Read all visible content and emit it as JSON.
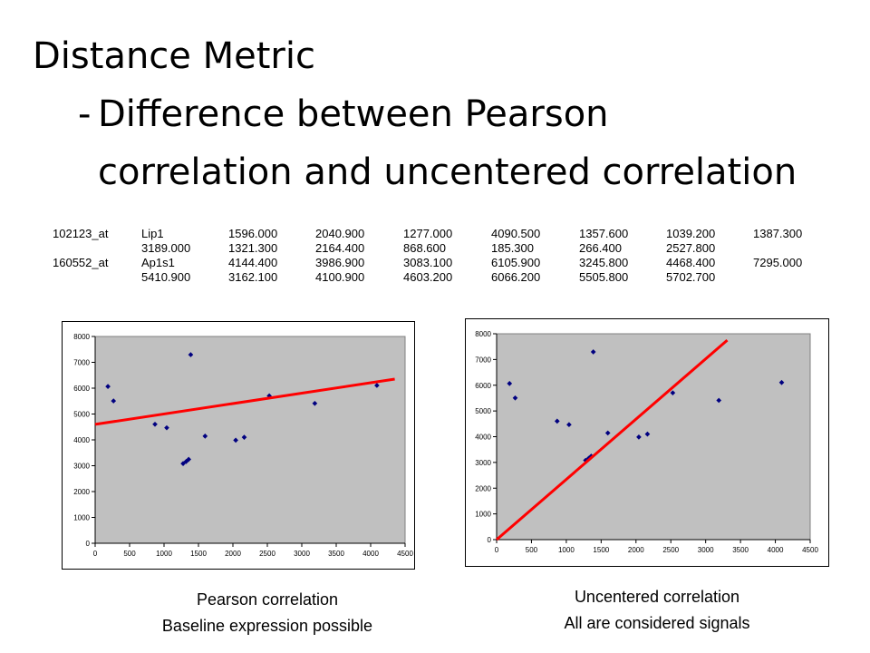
{
  "title": {
    "line1": "Distance Metric",
    "dash": "-",
    "line2": "Difference between Pearson",
    "line3": "correlation and uncentered correlation"
  },
  "genes": [
    {
      "rows": [
        [
          "102123_at",
          "Lip1",
          "1596.000",
          "2040.900",
          "1277.000",
          "4090.500",
          "1357.600",
          "1039.200",
          "1387.300"
        ],
        [
          "",
          "3189.000",
          "1321.300",
          "2164.400",
          "868.600",
          "185.300",
          "266.400",
          "2527.800",
          ""
        ]
      ]
    },
    {
      "rows": [
        [
          "160552_at",
          "Ap1s1",
          "4144.400",
          "3986.900",
          "3083.100",
          "6105.900",
          "3245.800",
          "4468.400",
          "7295.000"
        ],
        [
          "",
          "5410.900",
          "3162.100",
          "4100.900",
          "4603.200",
          "6066.200",
          "5505.800",
          "5702.700",
          ""
        ]
      ]
    }
  ],
  "chart_data": [
    {
      "type": "scatter",
      "xlim": [
        0,
        4500
      ],
      "ylim": [
        0,
        8000
      ],
      "xticks": [
        "0",
        "500",
        "1000",
        "1500",
        "2000",
        "2500",
        "3000",
        "3500",
        "4000",
        "4500"
      ],
      "yticks": [
        "0",
        "1000",
        "2000",
        "3000",
        "4000",
        "5000",
        "6000",
        "7000",
        "8000"
      ],
      "grid": false,
      "plot_bg": "#c0c0c0",
      "point_color": "#000080",
      "line_color": "#ff0000",
      "points": [
        [
          1596.0,
          4144.4
        ],
        [
          2040.9,
          3986.9
        ],
        [
          1277.0,
          3083.1
        ],
        [
          4090.5,
          6105.9
        ],
        [
          1357.6,
          3245.8
        ],
        [
          1039.2,
          4468.4
        ],
        [
          1387.3,
          7295.0
        ],
        [
          3189.0,
          5410.9
        ],
        [
          1321.3,
          3162.1
        ],
        [
          2164.4,
          4100.9
        ],
        [
          868.6,
          4603.2
        ],
        [
          185.3,
          6066.2
        ],
        [
          266.4,
          5505.8
        ],
        [
          2527.8,
          5702.7
        ]
      ],
      "fit_line": [
        [
          0,
          4600
        ],
        [
          4350,
          6350
        ]
      ],
      "caption": [
        "Pearson correlation",
        "Baseline expression possible"
      ]
    },
    {
      "type": "scatter",
      "xlim": [
        0,
        4500
      ],
      "ylim": [
        0,
        8000
      ],
      "xticks": [
        "0",
        "500",
        "1000",
        "1500",
        "2000",
        "2500",
        "3000",
        "3500",
        "4000",
        "4500"
      ],
      "yticks": [
        "0",
        "1000",
        "2000",
        "3000",
        "4000",
        "5000",
        "6000",
        "7000",
        "8000"
      ],
      "grid": false,
      "plot_bg": "#c0c0c0",
      "point_color": "#000080",
      "line_color": "#ff0000",
      "points": [
        [
          1596.0,
          4144.4
        ],
        [
          2040.9,
          3986.9
        ],
        [
          1277.0,
          3083.1
        ],
        [
          4090.5,
          6105.9
        ],
        [
          1357.6,
          3245.8
        ],
        [
          1039.2,
          4468.4
        ],
        [
          1387.3,
          7295.0
        ],
        [
          3189.0,
          5410.9
        ],
        [
          1321.3,
          3162.1
        ],
        [
          2164.4,
          4100.9
        ],
        [
          868.6,
          4603.2
        ],
        [
          185.3,
          6066.2
        ],
        [
          266.4,
          5505.8
        ],
        [
          2527.8,
          5702.7
        ]
      ],
      "fit_line": [
        [
          0,
          0
        ],
        [
          3310,
          7750
        ]
      ],
      "caption": [
        "Uncentered correlation",
        "All are considered signals"
      ]
    }
  ]
}
